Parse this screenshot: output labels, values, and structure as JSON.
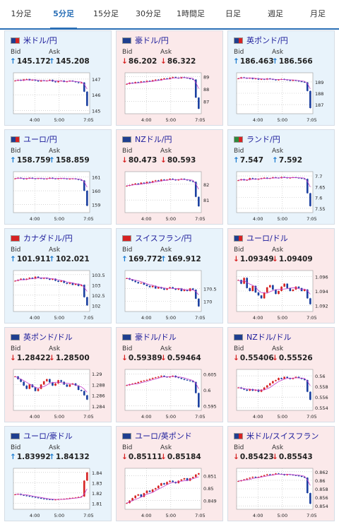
{
  "tabs": [
    {
      "label": "1分足",
      "active": false
    },
    {
      "label": "5分足",
      "active": true
    },
    {
      "label": "15分足",
      "active": false
    },
    {
      "label": "30分足",
      "active": false
    },
    {
      "label": "1時間足",
      "active": false
    },
    {
      "label": "日足",
      "active": false
    },
    {
      "label": "週足",
      "active": false
    },
    {
      "label": "月足",
      "active": false
    }
  ],
  "labels": {
    "bid": "Bid",
    "ask": "Ask"
  },
  "colors": {
    "up_bg": "#e8f3fb",
    "down_bg": "#fbe9ea",
    "up": "#1a7bd0",
    "down": "#d62222",
    "accent": "#2a6fb6",
    "candle_up": "#d62222",
    "candle_down": "#1a3fa0",
    "ma": "#c238c8"
  },
  "cards": [
    {
      "pair": "米ドル/円",
      "direction": "up",
      "bid": "145.172",
      "ask": "145.208",
      "flags": [
        "#1f3f8f",
        "#d62222"
      ],
      "chart_data": {
        "type": "candlestick",
        "x_ticks": [
          "4:00",
          "5:00",
          "7:05"
        ],
        "y_ticks": [
          "147",
          "146",
          "145"
        ],
        "ylim": [
          144.8,
          147.4
        ],
        "series": [
          146.9,
          146.95,
          146.9,
          146.98,
          147.0,
          146.92,
          146.95,
          146.9,
          146.85,
          146.92,
          146.88,
          146.9,
          146.95,
          146.85,
          146.8,
          146.88,
          146.9,
          146.82,
          146.85,
          146.9,
          146.85,
          146.8,
          146.75,
          146.78,
          146.2,
          145.3
        ]
      }
    },
    {
      "pair": "豪ドル/円",
      "direction": "down",
      "bid": "86.202",
      "ask": "86.322",
      "flags": [
        "#1f3f8f",
        "#1f3f8f"
      ],
      "chart_data": {
        "type": "candlestick",
        "x_ticks": [
          "4:00",
          "5:00",
          "7:05"
        ],
        "y_ticks": [
          "89",
          "88",
          "87"
        ],
        "ylim": [
          86.0,
          89.3
        ],
        "series": [
          88.4,
          88.5,
          88.45,
          88.55,
          88.5,
          88.6,
          88.55,
          88.65,
          88.6,
          88.7,
          88.75,
          88.7,
          88.8,
          88.85,
          88.8,
          88.9,
          88.95,
          88.9,
          88.85,
          88.95,
          88.9,
          88.85,
          88.8,
          88.75,
          87.3,
          86.4
        ]
      }
    },
    {
      "pair": "英ポンド/円",
      "direction": "up",
      "bid": "186.463",
      "ask": "186.566",
      "flags": [
        "#1f3f8f",
        "#d62222"
      ],
      "chart_data": {
        "type": "candlestick",
        "x_ticks": [
          "4:00",
          "5:00",
          "7:05"
        ],
        "y_ticks": [
          "189",
          "188",
          "187"
        ],
        "ylim": [
          186.2,
          189.8
        ],
        "series": [
          189.3,
          189.4,
          189.35,
          189.3,
          189.35,
          189.25,
          189.3,
          189.2,
          189.25,
          189.2,
          189.3,
          189.25,
          189.2,
          189.15,
          189.2,
          189.25,
          189.2,
          189.15,
          189.1,
          189.15,
          189.1,
          189.05,
          189.0,
          188.95,
          188.2,
          186.7
        ]
      }
    },
    {
      "pair": "ユーロ/円",
      "direction": "up",
      "bid": "158.759",
      "ask": "158.859",
      "flags": [
        "#1f3f8f",
        "#d62222"
      ],
      "chart_data": {
        "type": "candlestick",
        "x_ticks": [
          "4:00",
          "5:00",
          "7:05"
        ],
        "y_ticks": [
          "161",
          "160",
          "159"
        ],
        "ylim": [
          158.4,
          161.4
        ],
        "series": [
          160.9,
          160.95,
          160.9,
          160.85,
          160.9,
          160.95,
          160.9,
          160.88,
          160.92,
          160.9,
          160.85,
          160.9,
          160.95,
          160.9,
          160.88,
          160.9,
          160.92,
          160.9,
          160.85,
          160.88,
          160.9,
          160.85,
          160.8,
          160.75,
          160.0,
          158.9
        ]
      }
    },
    {
      "pair": "NZドル/円",
      "direction": "down",
      "bid": "80.473",
      "ask": "80.593",
      "flags": [
        "#1f3f8f",
        "#1f3f8f"
      ],
      "chart_data": {
        "type": "candlestick",
        "x_ticks": [
          "4:00",
          "5:00",
          "7:05"
        ],
        "y_ticks": [
          "82",
          "81"
        ],
        "ylim": [
          80.2,
          82.8
        ],
        "series": [
          81.9,
          81.95,
          82.0,
          82.05,
          82.0,
          82.1,
          82.05,
          82.15,
          82.1,
          82.2,
          82.25,
          82.2,
          82.3,
          82.25,
          82.3,
          82.35,
          82.3,
          82.25,
          82.3,
          82.35,
          82.3,
          82.25,
          82.2,
          82.15,
          81.2,
          80.6
        ]
      }
    },
    {
      "pair": "ランド/円",
      "direction": "up",
      "bid": "7.547",
      "ask": "7.592",
      "flags": [
        "#2e8b3d",
        "#d62222"
      ],
      "chart_data": {
        "type": "candlestick",
        "x_ticks": [
          "4:00",
          "5:00",
          "7:05"
        ],
        "y_ticks": [
          "7.7",
          "7.65",
          "7.6",
          "7.55"
        ],
        "ylim": [
          7.53,
          7.72
        ],
        "series": [
          7.68,
          7.685,
          7.68,
          7.682,
          7.69,
          7.688,
          7.684,
          7.686,
          7.69,
          7.692,
          7.688,
          7.69,
          7.694,
          7.692,
          7.69,
          7.695,
          7.693,
          7.69,
          7.692,
          7.694,
          7.692,
          7.69,
          7.688,
          7.686,
          7.62,
          7.56
        ]
      }
    },
    {
      "pair": "カナダドル/円",
      "direction": "up",
      "bid": "101.911",
      "ask": "102.021",
      "flags": [
        "#d62222",
        "#d62222"
      ],
      "chart_data": {
        "type": "candlestick",
        "x_ticks": [
          "4:00",
          "5:00",
          "7:05"
        ],
        "y_ticks": [
          "103.5",
          "103",
          "102.5",
          "102"
        ],
        "ylim": [
          101.7,
          103.7
        ],
        "series": [
          103.2,
          103.25,
          103.3,
          103.25,
          103.3,
          103.35,
          103.3,
          103.4,
          103.35,
          103.3,
          103.35,
          103.3,
          103.25,
          103.3,
          103.2,
          103.15,
          103.2,
          103.1,
          103.05,
          103.1,
          103.0,
          103.05,
          102.95,
          103.0,
          102.4,
          102.0
        ]
      }
    },
    {
      "pair": "スイスフラン/円",
      "direction": "up",
      "bid": "169.772",
      "ask": "169.912",
      "flags": [
        "#d62222",
        "#d62222"
      ],
      "chart_data": {
        "type": "candlestick",
        "x_ticks": [
          "4:00",
          "5:00",
          "7:05"
        ],
        "y_ticks": [
          "170.5",
          "170"
        ],
        "ylim": [
          169.6,
          171.2
        ],
        "series": [
          170.9,
          170.85,
          170.8,
          170.75,
          170.7,
          170.72,
          170.65,
          170.6,
          170.55,
          170.6,
          170.5,
          170.55,
          170.5,
          170.45,
          170.5,
          170.55,
          170.5,
          170.45,
          170.5,
          170.4,
          170.45,
          170.4,
          170.5,
          170.45,
          170.1,
          169.8
        ]
      }
    },
    {
      "pair": "ユーロ/ドル",
      "direction": "down",
      "bid": "1.09349",
      "ask": "1.09409",
      "flags": [
        "#1f3f8f",
        "#d62222"
      ],
      "chart_data": {
        "type": "candlestick",
        "x_ticks": [
          "4:00",
          "5:00",
          "7:05"
        ],
        "y_ticks": [
          "1.096",
          "1.094",
          "1.092"
        ],
        "ylim": [
          1.0912,
          1.0968
        ],
        "series": [
          1.0955,
          1.095,
          1.0958,
          1.0944,
          1.094,
          1.0947,
          1.0938,
          1.0934,
          1.093,
          1.0938,
          1.0945,
          1.0948,
          1.0942,
          1.0936,
          1.094,
          1.0946,
          1.095,
          1.0944,
          1.094,
          1.0942,
          1.0946,
          1.0944,
          1.094,
          1.0942,
          1.093,
          1.0922
        ]
      }
    },
    {
      "pair": "英ポンド/ドル",
      "direction": "down",
      "bid": "1.28422",
      "ask": "1.28500",
      "flags": [
        "#1f3f8f",
        "#1f3f8f"
      ],
      "chart_data": {
        "type": "candlestick",
        "x_ticks": [
          "4:00",
          "5:00",
          "7:05"
        ],
        "y_ticks": [
          "1.29",
          "1.288",
          "1.286",
          "1.284"
        ],
        "ylim": [
          1.2832,
          1.2908
        ],
        "series": [
          1.2895,
          1.289,
          1.2885,
          1.2878,
          1.2872,
          1.288,
          1.2875,
          1.2868,
          1.2872,
          1.288,
          1.2886,
          1.289,
          1.2884,
          1.2878,
          1.2882,
          1.2888,
          1.2885,
          1.288,
          1.2876,
          1.288,
          1.2882,
          1.2878,
          1.287,
          1.2868,
          1.286,
          1.2852
        ]
      }
    },
    {
      "pair": "豪ドル/ドル",
      "direction": "down",
      "bid": "0.59389",
      "ask": "0.59464",
      "flags": [
        "#1f3f8f",
        "#1f3f8f"
      ],
      "chart_data": {
        "type": "candlestick",
        "x_ticks": [
          "4:00",
          "5:00",
          "7:05"
        ],
        "y_ticks": [
          "0.605",
          "0.6",
          "0.595"
        ],
        "ylim": [
          0.5935,
          0.6065
        ],
        "series": [
          0.6015,
          0.6018,
          0.602,
          0.6022,
          0.6025,
          0.6028,
          0.603,
          0.6032,
          0.6035,
          0.6038,
          0.604,
          0.6042,
          0.6045,
          0.6042,
          0.604,
          0.6042,
          0.6045,
          0.604,
          0.6038,
          0.6035,
          0.6032,
          0.603,
          0.6028,
          0.6025,
          0.599,
          0.5945
        ]
      }
    },
    {
      "pair": "NZドル/ドル",
      "direction": "down",
      "bid": "0.55406",
      "ask": "0.55526",
      "flags": [
        "#1f3f8f",
        "#1f3f8f"
      ],
      "chart_data": {
        "type": "candlestick",
        "x_ticks": [
          "4:00",
          "5:00",
          "7:05"
        ],
        "y_ticks": [
          "0.56",
          "0.558",
          "0.556",
          "0.554"
        ],
        "ylim": [
          0.5535,
          0.5612
        ],
        "series": [
          0.5578,
          0.5576,
          0.5574,
          0.5572,
          0.5575,
          0.5572,
          0.5574,
          0.557,
          0.5574,
          0.5578,
          0.5582,
          0.5586,
          0.559,
          0.5592,
          0.5596,
          0.5594,
          0.5598,
          0.5596,
          0.5594,
          0.5596,
          0.5598,
          0.5596,
          0.5594,
          0.5592,
          0.557,
          0.5555
        ]
      }
    },
    {
      "pair": "ユーロ/豪ドル",
      "direction": "up",
      "bid": "1.83992",
      "ask": "1.84132",
      "flags": [
        "#1f3f8f",
        "#1f3f8f"
      ],
      "chart_data": {
        "type": "candlestick",
        "x_ticks": [
          "4:00",
          "5:00",
          "7:05"
        ],
        "y_ticks": [
          "1.84",
          "1.83",
          "1.82",
          "1.81"
        ],
        "ylim": [
          1.804,
          1.844
        ],
        "series": [
          1.8185,
          1.819,
          1.818,
          1.8175,
          1.817,
          1.8165,
          1.816,
          1.8155,
          1.815,
          1.8145,
          1.814,
          1.8138,
          1.8136,
          1.8134,
          1.8135,
          1.8138,
          1.814,
          1.8142,
          1.8145,
          1.815,
          1.8152,
          1.8155,
          1.816,
          1.8165,
          1.832,
          1.84
        ]
      }
    },
    {
      "pair": "ユーロ/英ポンド",
      "direction": "down",
      "bid": "0.85111",
      "ask": "0.85184",
      "flags": [
        "#1f3f8f",
        "#1f3f8f"
      ],
      "chart_data": {
        "type": "candlestick",
        "x_ticks": [
          "4:00",
          "5:00",
          "7:05"
        ],
        "y_ticks": [
          "0.851",
          "0.85",
          "0.849"
        ],
        "ylim": [
          0.8483,
          0.8516
        ],
        "series": [
          0.8488,
          0.849,
          0.8492,
          0.8494,
          0.8495,
          0.8493,
          0.8496,
          0.8498,
          0.8497,
          0.8499,
          0.85,
          0.8502,
          0.8504,
          0.8503,
          0.8505,
          0.8506,
          0.8505,
          0.8504,
          0.8506,
          0.8507,
          0.8508,
          0.8506,
          0.8508,
          0.8509,
          0.8511,
          0.8512
        ]
      }
    },
    {
      "pair": "米ドル/スイスフラン",
      "direction": "down",
      "bid": "0.85423",
      "ask": "0.85543",
      "flags": [
        "#1f3f8f",
        "#d62222"
      ],
      "chart_data": {
        "type": "candlestick",
        "x_ticks": [
          "4:00",
          "5:00",
          "7:05"
        ],
        "y_ticks": [
          "0.862",
          "0.86",
          "0.858",
          "0.856",
          "0.854"
        ],
        "ylim": [
          0.8532,
          0.8628
        ],
        "series": [
          0.8598,
          0.86,
          0.8602,
          0.8604,
          0.8606,
          0.8608,
          0.8606,
          0.8608,
          0.861,
          0.8612,
          0.8614,
          0.8612,
          0.8614,
          0.8616,
          0.8615,
          0.8614,
          0.8612,
          0.8614,
          0.8613,
          0.8612,
          0.8611,
          0.861,
          0.8608,
          0.8606,
          0.857,
          0.8545
        ]
      }
    }
  ]
}
